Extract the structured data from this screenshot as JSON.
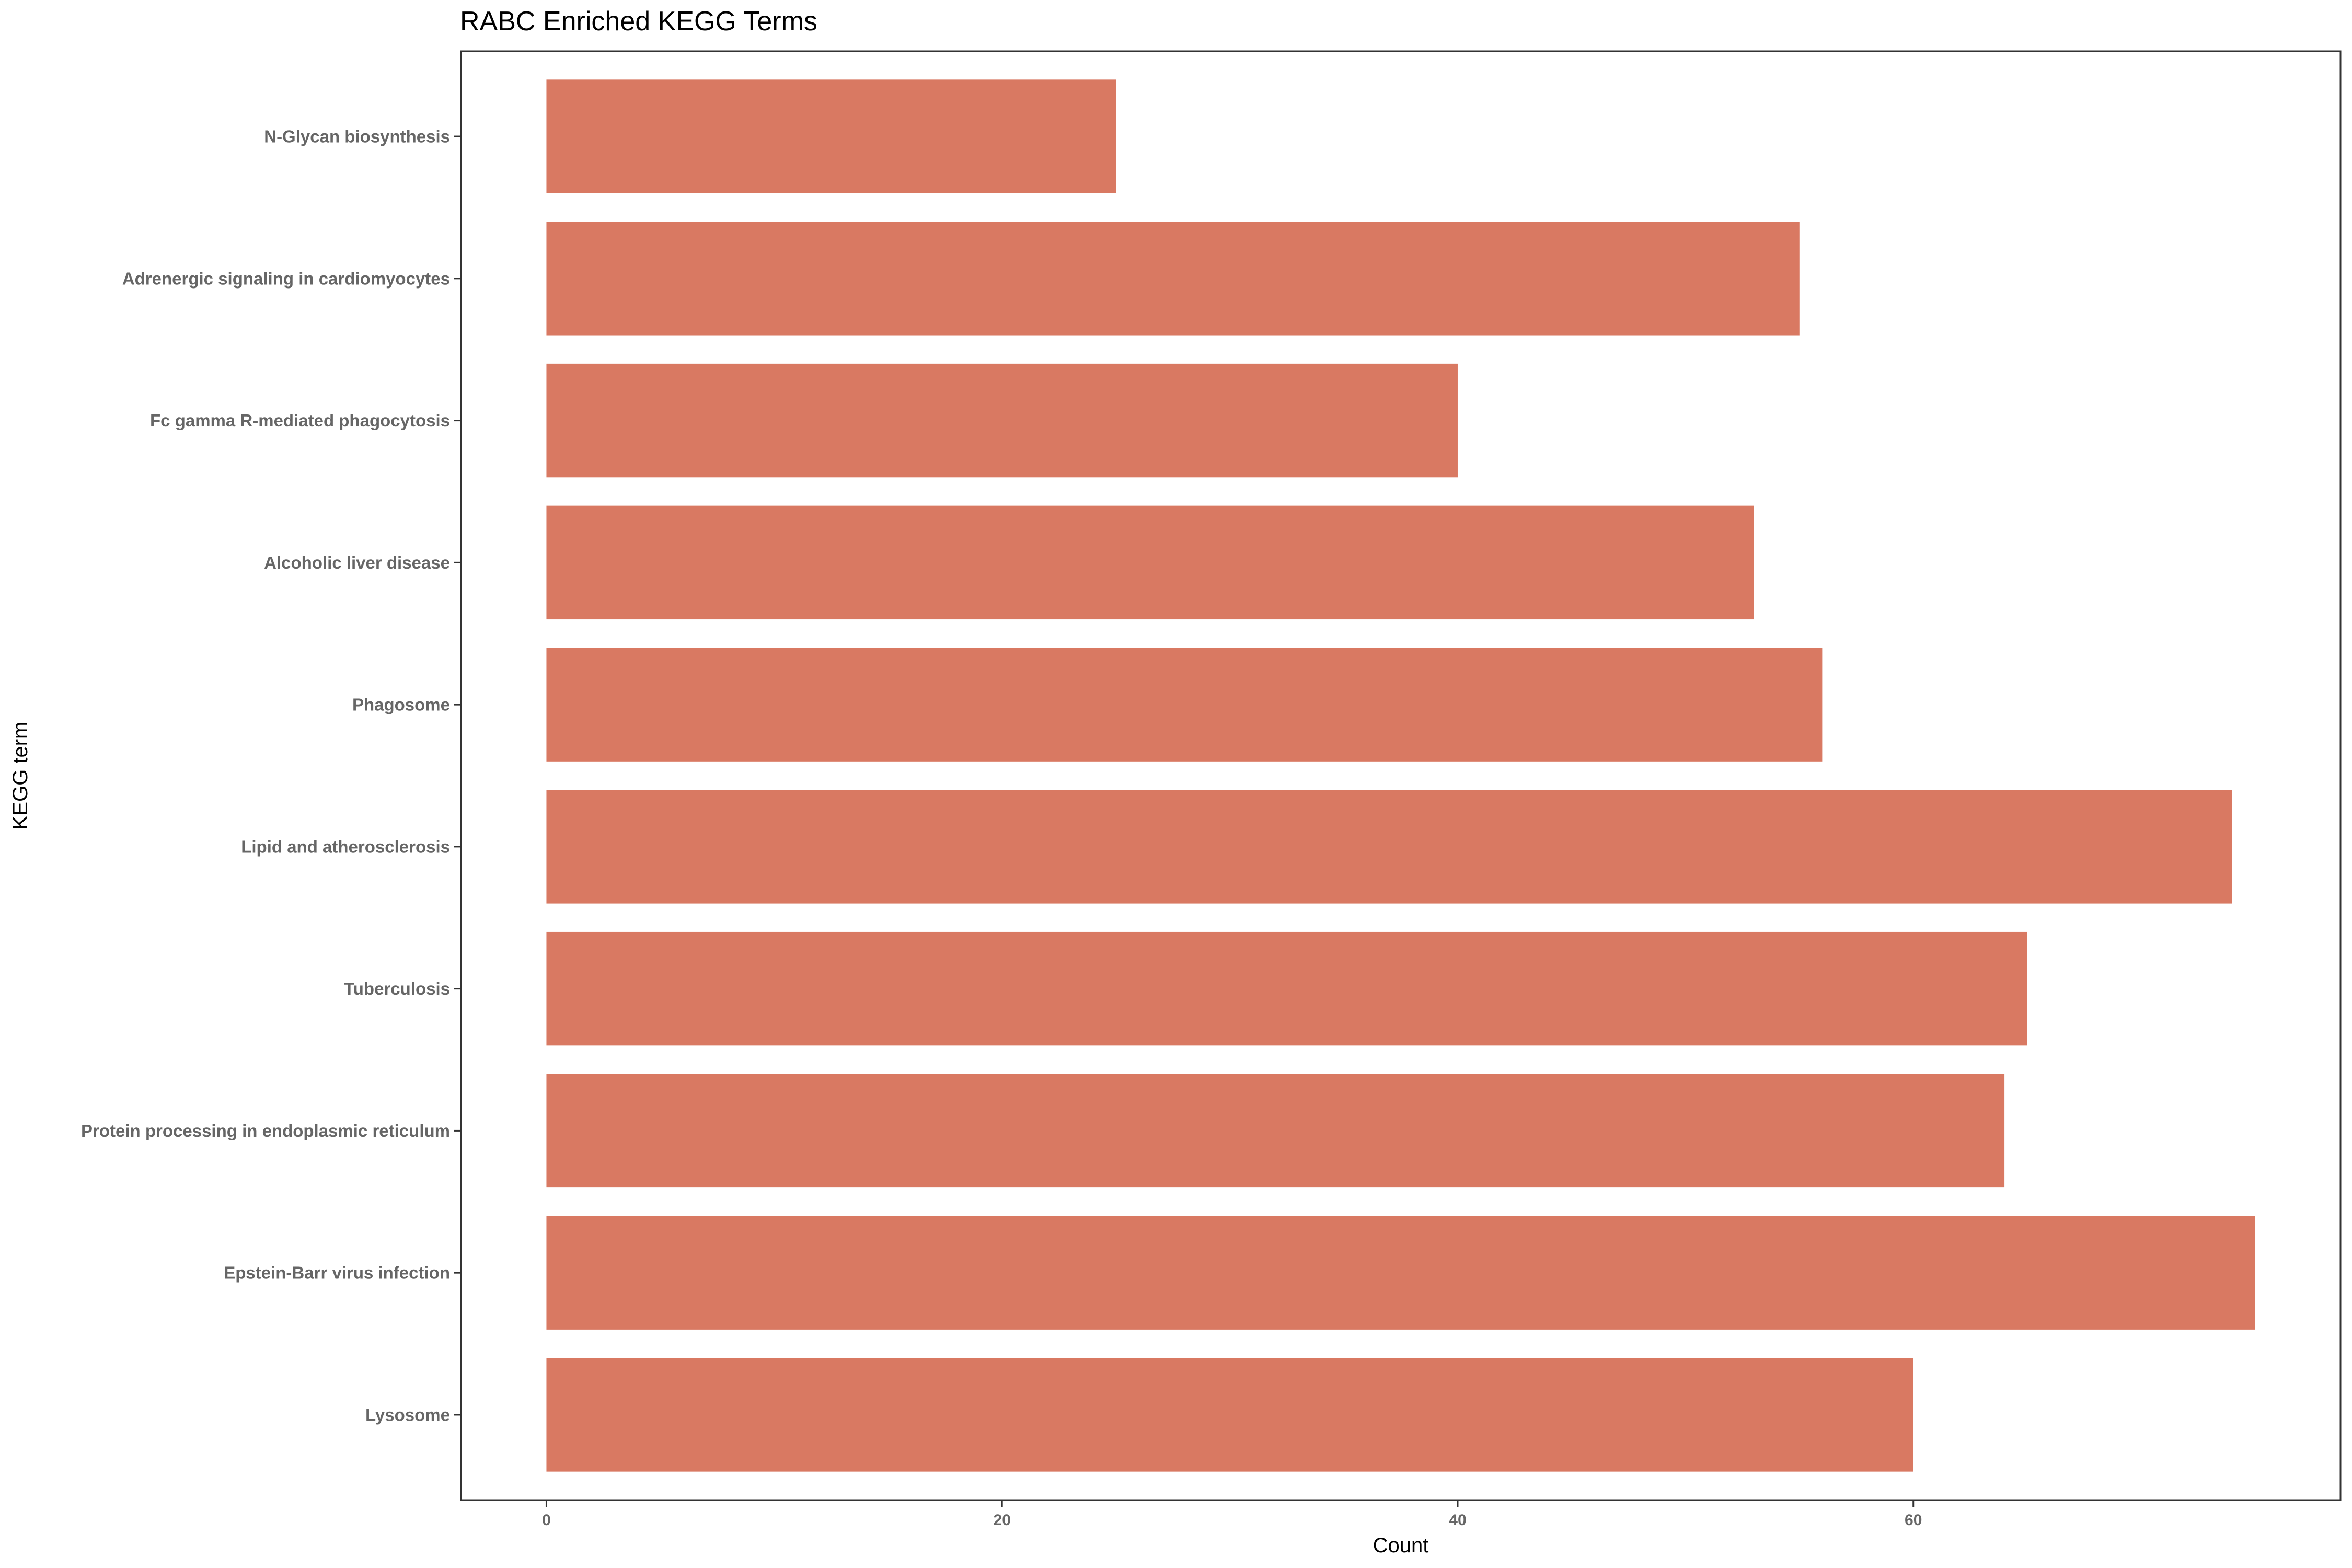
{
  "chart_data": {
    "type": "bar",
    "orientation": "horizontal",
    "title": "RABC Enriched KEGG Terms",
    "xlabel": "Count",
    "ylabel": "KEGG term",
    "categories": [
      "N-Glycan biosynthesis",
      "Adrenergic signaling in cardiomyocytes",
      "Fc gamma R-mediated phagocytosis",
      "Alcoholic liver disease",
      "Phagosome",
      "Lipid and atherosclerosis",
      "Tuberculosis",
      "Protein processing in endoplasmic reticulum",
      "Epstein-Barr virus infection",
      "Lysosome"
    ],
    "values": [
      25,
      55,
      40,
      53,
      56,
      74,
      65,
      64,
      75,
      60
    ],
    "xticks": [
      0,
      20,
      40,
      60
    ],
    "xlim": [
      -3.75,
      78.75
    ],
    "grid": false,
    "legend": "none",
    "colors": {
      "bar": "#D97962",
      "panel_border": "#333333",
      "tick_text": "#666666"
    }
  }
}
